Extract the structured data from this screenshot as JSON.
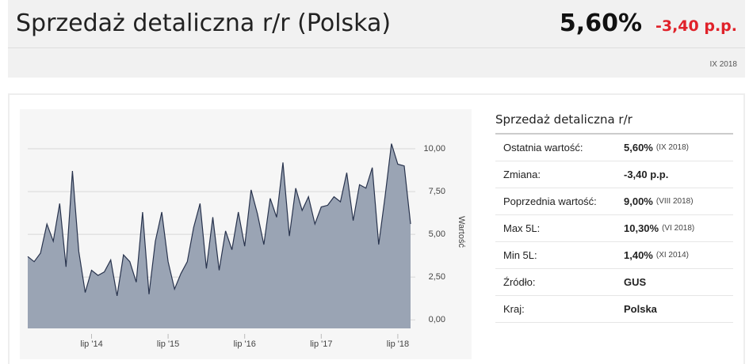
{
  "header": {
    "title": "Sprzedaż detaliczna r/r (Polska)",
    "value": "5,60%",
    "change": "-3,40 p.p.",
    "date": "IX 2018"
  },
  "chart_data": {
    "type": "area",
    "y_label": "Wartość",
    "color": "#9aa4b4",
    "line_color": "#28334d",
    "grid": true,
    "categories": [
      null,
      null,
      null,
      null,
      null,
      null,
      null,
      null,
      null,
      null,
      "lip '14",
      null,
      null,
      null,
      null,
      null,
      null,
      null,
      null,
      null,
      null,
      null,
      "lip '15",
      null,
      null,
      null,
      null,
      null,
      null,
      null,
      null,
      null,
      null,
      null,
      "lip '16",
      null,
      null,
      null,
      null,
      null,
      null,
      null,
      null,
      null,
      null,
      null,
      "lip '17",
      null,
      null,
      null,
      null,
      null,
      null,
      null,
      null,
      null,
      null,
      null,
      "lip '18",
      null,
      null
    ],
    "values": [
      3.7,
      3.4,
      3.9,
      5.6,
      4.6,
      6.8,
      3.1,
      8.7,
      4.0,
      1.6,
      2.9,
      2.6,
      2.8,
      3.5,
      1.4,
      3.8,
      3.4,
      2.2,
      6.3,
      1.5,
      4.6,
      6.3,
      3.4,
      1.8,
      2.7,
      3.4,
      5.4,
      6.8,
      3.0,
      6.0,
      2.9,
      5.2,
      4.1,
      6.3,
      4.3,
      7.6,
      6.2,
      4.4,
      7.1,
      6.0,
      9.2,
      4.9,
      7.7,
      6.4,
      7.2,
      5.6,
      6.6,
      6.7,
      7.2,
      6.9,
      8.6,
      5.8,
      7.9,
      7.7,
      8.9,
      4.4,
      7.2,
      10.3,
      9.1,
      9.0,
      5.6
    ],
    "ylim": [
      -0.5,
      12.5
    ],
    "yticks": [
      {
        "value": 0,
        "label": "0,00"
      },
      {
        "value": 2.5,
        "label": "2,50"
      },
      {
        "value": 5,
        "label": "5,00"
      },
      {
        "value": 7.5,
        "label": "7,50"
      },
      {
        "value": 10,
        "label": "10,00"
      }
    ]
  },
  "table": {
    "title": "Sprzedaż detaliczna r/r",
    "rows": [
      {
        "label": "Ostatnia wartość:",
        "value": "5,60%",
        "note": "(IX 2018)"
      },
      {
        "label": "Zmiana:",
        "value": "-3,40 p.p."
      },
      {
        "label": "Poprzednia wartość:",
        "value": "9,00%",
        "note": "(VIII 2018)"
      },
      {
        "label": "Max 5L:",
        "value": "10,30%",
        "note": "(VI 2018)"
      },
      {
        "label": "Min 5L:",
        "value": "1,40%",
        "note": "(XI 2014)"
      },
      {
        "label": "Źródło:",
        "value": "GUS"
      },
      {
        "label": "Kraj:",
        "value": "Polska"
      }
    ]
  }
}
